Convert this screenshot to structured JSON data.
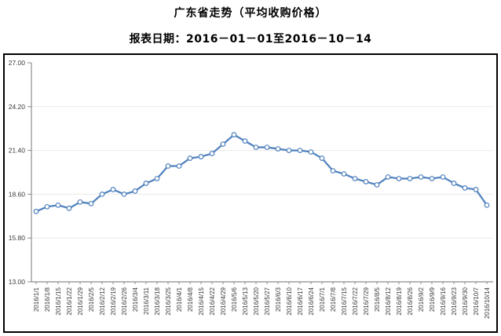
{
  "page": {
    "title": "广东省走势（平均收购价格）",
    "subtitle": "报表日期：2016－01－01至2016－10－14"
  },
  "chart_data": {
    "type": "line",
    "title": "广东省走势（平均收购价格）",
    "subtitle": "报表日期：2016－01－01至2016－10－14",
    "series": [
      {
        "name": "平均收购价格",
        "values": [
          17.5,
          17.8,
          17.9,
          17.7,
          18.1,
          18.0,
          18.6,
          18.9,
          18.6,
          18.8,
          19.3,
          19.6,
          20.4,
          20.4,
          20.9,
          21.0,
          21.2,
          21.8,
          22.4,
          22.0,
          21.6,
          21.6,
          21.5,
          21.4,
          21.4,
          21.3,
          20.9,
          20.1,
          19.9,
          19.6,
          19.4,
          19.2,
          19.7,
          19.6,
          19.6,
          19.7,
          19.6,
          19.7,
          19.3,
          19.0,
          18.9,
          17.9
        ]
      }
    ],
    "x": [
      "2016/1/1",
      "2016/1/8",
      "2016/1/15",
      "2016/1/22",
      "2016/1/29",
      "2016/2/5",
      "2016/2/12",
      "2016/2/19",
      "2016/2/26",
      "2016/3/4",
      "2016/3/11",
      "2016/3/18",
      "2016/3/25",
      "2016/4/1",
      "2016/4/8",
      "2016/4/15",
      "2016/4/22",
      "2016/4/29",
      "2016/5/6",
      "2016/5/13",
      "2016/5/20",
      "2016/5/27",
      "2016/6/3",
      "2016/6/10",
      "2016/6/17",
      "2016/6/24",
      "2016/7/1",
      "2016/7/8",
      "2016/7/15",
      "2016/7/22",
      "2016/7/29",
      "2016/8/5",
      "2016/8/12",
      "2016/8/19",
      "2016/8/26",
      "2016/9/2",
      "2016/9/9",
      "2016/9/16",
      "2016/9/23",
      "2016/9/30",
      "2016/10/7",
      "2016/10/14"
    ],
    "xlabel": "",
    "ylabel": "",
    "ylim": [
      13.0,
      27.0
    ],
    "ytick_step": 2.8,
    "yticks": [
      "27.00",
      "24.20",
      "21.40",
      "18.60",
      "15.80",
      "13.00"
    ],
    "grid": true,
    "legend": "none",
    "marker": "hollow-circle",
    "colors": {
      "line": "#4f81bd",
      "marker_fill": "#ffffff",
      "grid": "#e9e9e9",
      "axis": "#8c8c8c",
      "tick_label": "#3a3a3a",
      "border": "#000000"
    }
  }
}
